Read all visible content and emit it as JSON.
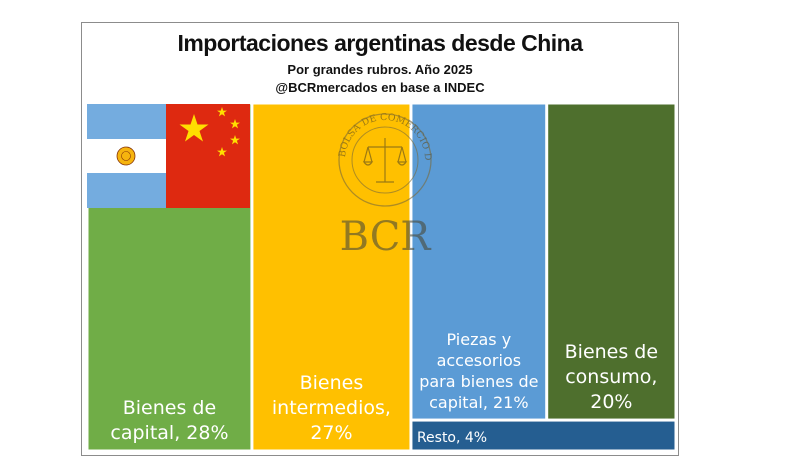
{
  "header": {
    "title": "Importaciones argentinas desde China",
    "subtitle": "Por grandes rubros. Año 2025",
    "source": "@BCRmercados en base a INDEC"
  },
  "watermark": {
    "seal_text": "BOLSA DE COMERCIO DE ROSARIO",
    "logo_text": "BCR"
  },
  "colors": {
    "capital": "#70ad47",
    "intermedios": "#ffc000",
    "piezas": "#5b9bd5",
    "consumo": "#4e6f2d",
    "resto": "#255e91",
    "label_light": "#ffffff",
    "label_dark": "#111111"
  },
  "chart_data": {
    "type": "treemap",
    "unit": "%",
    "items": [
      {
        "key": "capital",
        "label_lines": [
          "Bienes de",
          "capital, 28%"
        ],
        "category": "Bienes de capital",
        "value": 28
      },
      {
        "key": "intermedios",
        "label_lines": [
          "Bienes",
          "intermedios,",
          "27%"
        ],
        "category": "Bienes intermedios",
        "value": 27
      },
      {
        "key": "piezas",
        "label_lines": [
          "Piezas y",
          "accesorios",
          "para bienes de",
          "capital, 21%"
        ],
        "category": "Piezas y accesorios para bienes de capital",
        "value": 21
      },
      {
        "key": "consumo",
        "label_lines": [
          "Bienes de",
          "consumo,",
          "20%"
        ],
        "category": "Bienes de consumo",
        "value": 20
      },
      {
        "key": "resto",
        "label_lines": [
          "Resto, 4%"
        ],
        "category": "Resto",
        "value": 4
      }
    ]
  }
}
